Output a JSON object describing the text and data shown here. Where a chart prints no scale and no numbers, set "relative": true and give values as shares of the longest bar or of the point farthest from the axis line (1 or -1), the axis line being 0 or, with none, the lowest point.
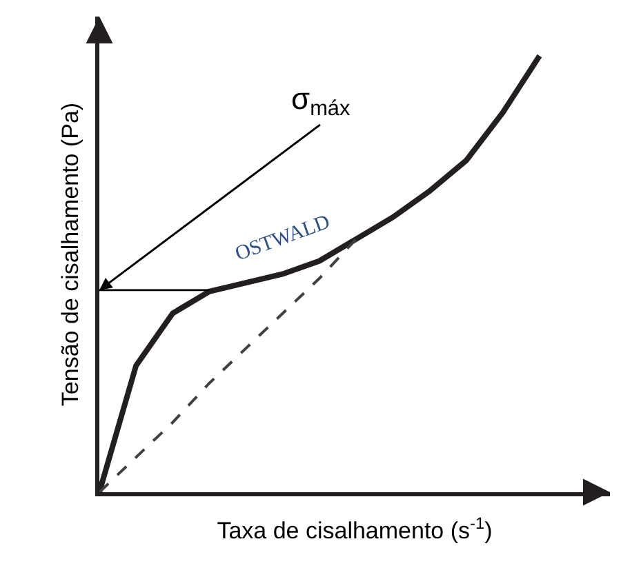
{
  "chart_data": {
    "type": "line",
    "relative": true,
    "xlabel": "Taxa de cisalhamento (s$^{-1}$)",
    "ylabel": "Tensão de cisalhamento (Pa)",
    "categories": [
      null,
      null,
      null,
      null,
      null,
      null,
      null,
      null,
      null,
      null,
      null,
      null,
      null
    ],
    "tick_labels": false,
    "marker": "none",
    "series": [
      {
        "name": "OSTWALD",
        "color": "#231f20",
        "line_style": "solid",
        "values": [
          0,
          0.29,
          0.41,
          0.46,
          0.48,
          0.5,
          0.53,
          0.58,
          0.63,
          0.69,
          0.76,
          0.87,
          1.0
        ]
      },
      {
        "color": "#404040",
        "line_style": "dashed",
        "values": [
          0,
          0.08,
          0.16,
          0.25,
          0.33,
          0.41,
          0.49,
          0.58,
          null,
          null,
          null,
          null,
          null
        ]
      },
      {
        "color": "#000000",
        "line_style": "solid",
        "values": [
          0.463,
          0.463,
          0.463,
          0.463,
          null,
          null,
          null,
          null,
          null,
          null,
          null,
          null,
          null
        ]
      }
    ],
    "annotations": [
      "σ$_{máx}$"
    ]
  }
}
